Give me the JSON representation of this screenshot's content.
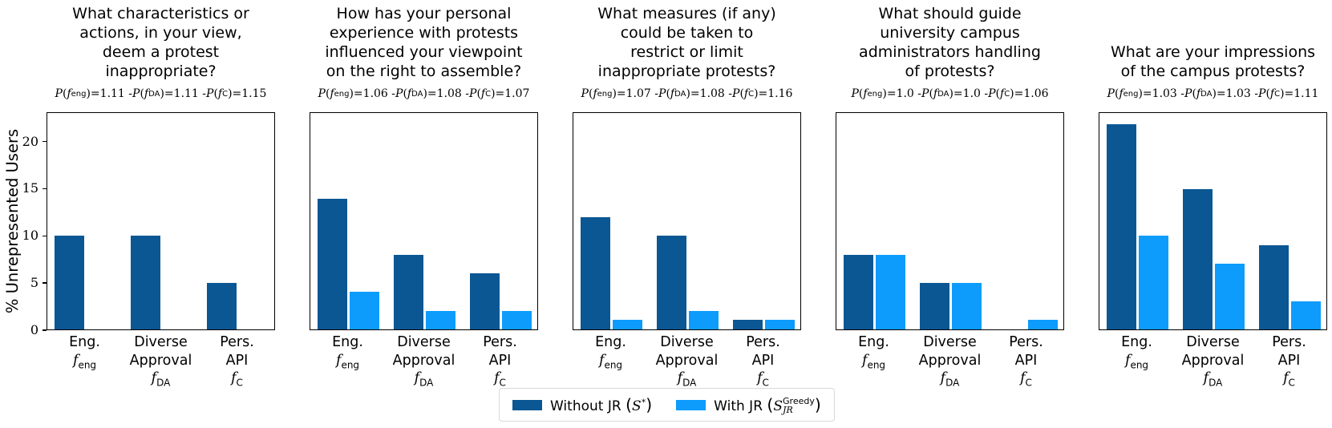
{
  "colors": {
    "without_jr": "#0a5794",
    "with_jr": "#0d9cfc",
    "spine": "#000000",
    "legend_border": "#d9d9d9",
    "text": "#000000"
  },
  "legend": {
    "items": [
      {
        "id": "without-jr",
        "prefix": "Without JR (",
        "symbol": "S",
        "sup": "*",
        "sub": "",
        "suffix": ")",
        "color_key": "without_jr",
        "plain": "Without JR (S*)"
      },
      {
        "id": "with-jr",
        "prefix": "With JR (",
        "symbol": "S",
        "sup": "Greedy",
        "sub": "JR",
        "suffix": ")",
        "color_key": "with_jr",
        "plain": "With JR (S_JR^Greedy)"
      }
    ]
  },
  "chart_data": {
    "type": "bar",
    "ylabel": "% Unrepresented Users",
    "yticks": [
      0,
      5,
      10,
      15,
      20
    ],
    "ylim": [
      0,
      23.1
    ],
    "grid": false,
    "legend_position": "bottom-center",
    "categories": [
      {
        "id": "eng",
        "lines": [
          "Eng."
        ],
        "f_subscript": "eng"
      },
      {
        "id": "diverse-approval",
        "lines": [
          "Diverse",
          "Approval"
        ],
        "f_subscript": "DA"
      },
      {
        "id": "pers-api",
        "lines": [
          "Pers.",
          "API"
        ],
        "f_subscript": "C"
      }
    ],
    "series_names": [
      "Without JR (S*)",
      "With JR (S_JR^Greedy)"
    ],
    "panels": [
      {
        "title_lines": [
          "What characteristics or",
          "actions, in your view,",
          "deem a protest",
          "inappropriate?"
        ],
        "subtitle_values": {
          "eng": "1.11",
          "DA": "1.11",
          "C": "1.15"
        },
        "series": [
          {
            "name": "Without JR (S*)",
            "values": [
              10,
              10,
              5
            ]
          },
          {
            "name": "With JR (S_JR^Greedy)",
            "values": [
              0,
              0,
              0
            ]
          }
        ]
      },
      {
        "title_lines": [
          "How has your personal",
          "experience with protests",
          "influenced your viewpoint",
          "on the right to assemble?"
        ],
        "subtitle_values": {
          "eng": "1.06",
          "DA": "1.08",
          "C": "1.07"
        },
        "series": [
          {
            "name": "Without JR (S*)",
            "values": [
              14,
              8,
              6
            ]
          },
          {
            "name": "With JR (S_JR^Greedy)",
            "values": [
              4,
              2,
              2
            ]
          }
        ]
      },
      {
        "title_lines": [
          "What measures (if any)",
          "could be taken to",
          "restrict or limit",
          "inappropriate protests?"
        ],
        "subtitle_values": {
          "eng": "1.07",
          "DA": "1.08",
          "C": "1.16"
        },
        "series": [
          {
            "name": "Without JR (S*)",
            "values": [
              12,
              10,
              1
            ]
          },
          {
            "name": "With JR (S_JR^Greedy)",
            "values": [
              1,
              2,
              1
            ]
          }
        ]
      },
      {
        "title_lines": [
          "What should guide",
          "university campus",
          "administrators handling",
          "of protests?"
        ],
        "subtitle_values": {
          "eng": "1.0",
          "DA": "1.0",
          "C": "1.06"
        },
        "series": [
          {
            "name": "Without JR (S*)",
            "values": [
              8,
              5,
              0
            ]
          },
          {
            "name": "With JR (S_JR^Greedy)",
            "values": [
              8,
              5,
              1
            ]
          }
        ]
      },
      {
        "title_lines": [
          "What are your impressions",
          "of the campus protests?"
        ],
        "subtitle_values": {
          "eng": "1.03",
          "DA": "1.03",
          "C": "1.11"
        },
        "series": [
          {
            "name": "Without JR (S*)",
            "values": [
              22,
              15,
              9
            ]
          },
          {
            "name": "With JR (S_JR^Greedy)",
            "values": [
              10,
              7,
              3
            ]
          }
        ]
      }
    ]
  }
}
